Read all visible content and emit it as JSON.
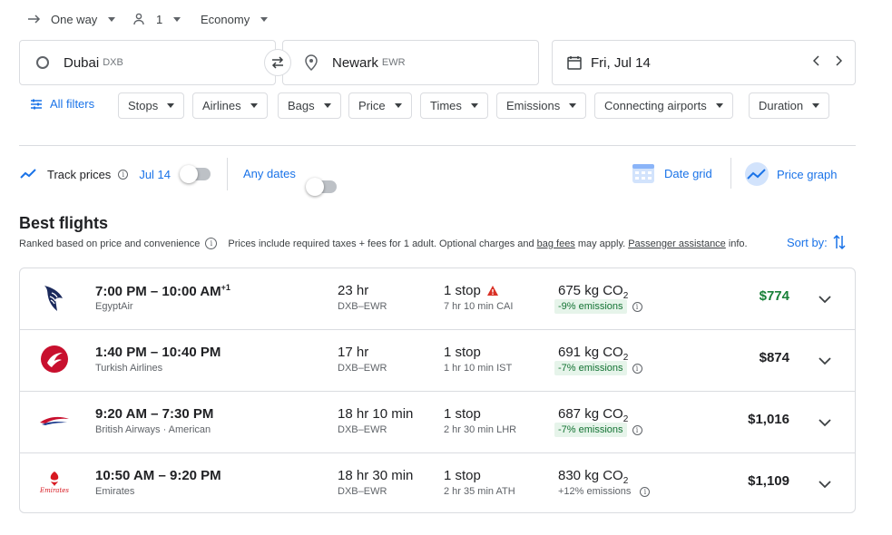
{
  "trip": {
    "type": "One way",
    "passengers": "1",
    "cabin": "Economy"
  },
  "search": {
    "origin": "Dubai",
    "origin_code": "DXB",
    "destination": "Newark",
    "destination_code": "EWR",
    "date": "Fri, Jul 14"
  },
  "filters": {
    "all": "All filters",
    "chips": [
      "Stops",
      "Airlines",
      "Bags",
      "Price",
      "Times",
      "Emissions",
      "Connecting airports",
      "Duration"
    ]
  },
  "tracking": {
    "label": "Track prices",
    "date": "Jul 14",
    "any_dates": "Any dates",
    "date_grid": "Date grid",
    "price_graph": "Price graph"
  },
  "best": {
    "title": "Best flights",
    "ranked": "Ranked based on price and convenience",
    "prices_prefix": "Prices include required taxes + fees for 1 adult. Optional charges and",
    "bag_fees": "bag fees",
    "may_apply": "may apply.",
    "assistance": "Passenger assistance",
    "info": "info.",
    "sort": "Sort by:"
  },
  "flights": [
    {
      "times": "7:00 PM – 10:00 AM",
      "plus": "+1",
      "airline": "EgyptAir",
      "duration": "23 hr",
      "route": "DXB–EWR",
      "stops": "1 stop",
      "warning": true,
      "layover": "7 hr 10 min CAI",
      "co2": "675 kg CO",
      "co2_sub": "2",
      "emissions": "-9% emissions",
      "emissions_badge": true,
      "price": "$774",
      "price_green": true,
      "logo": "egyptair-logo"
    },
    {
      "times": "1:40 PM – 10:40 PM",
      "plus": "",
      "airline": "Turkish Airlines",
      "duration": "17 hr",
      "route": "DXB–EWR",
      "stops": "1 stop",
      "warning": false,
      "layover": "1 hr 10 min IST",
      "co2": "691 kg CO",
      "co2_sub": "2",
      "emissions": "-7% emissions",
      "emissions_badge": true,
      "price": "$874",
      "price_green": false,
      "logo": "turkish-airlines-logo"
    },
    {
      "times": "9:20 AM – 7:30 PM",
      "plus": "",
      "airline": "British Airways · American",
      "duration": "18 hr 10 min",
      "route": "DXB–EWR",
      "stops": "1 stop",
      "warning": false,
      "layover": "2 hr 30 min LHR",
      "co2": "687 kg CO",
      "co2_sub": "2",
      "emissions": "-7% emissions",
      "emissions_badge": true,
      "price": "$1,016",
      "price_green": false,
      "logo": "british-airways-logo"
    },
    {
      "times": "10:50 AM – 9:20 PM",
      "plus": "",
      "airline": "Emirates",
      "duration": "18 hr 30 min",
      "route": "DXB–EWR",
      "stops": "1 stop",
      "warning": false,
      "layover": "2 hr 35 min ATH",
      "co2": "830 kg CO",
      "co2_sub": "2",
      "emissions": "+12% emissions",
      "emissions_badge": false,
      "price": "$1,109",
      "price_green": false,
      "logo": "emirates-logo",
      "logo_text": "Emirates"
    }
  ],
  "colors": {
    "accent": "#1a73e8",
    "price_green": "#188038",
    "warning": "#d93025"
  }
}
